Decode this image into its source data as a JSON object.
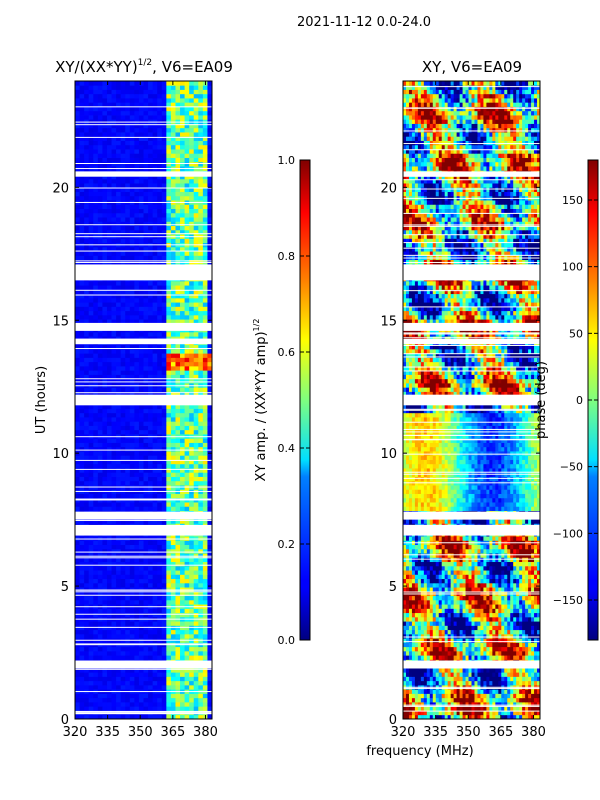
{
  "suptitle": "2021-11-12 0.0-24.0",
  "xlabel": "frequency (MHz)",
  "chart_data": [
    {
      "type": "heatmap",
      "title": "XY/(XX*YY)",
      "title_exponent": "1/2",
      "title_suffix": ", V6=EA09",
      "xlabel": "",
      "ylabel": "UT (hours)",
      "x_ticks": [
        "320",
        "335",
        "350",
        "365",
        "380"
      ],
      "x_tick_values": [
        320,
        335,
        350,
        365,
        380
      ],
      "y_ticks": [
        "0",
        "5",
        "10",
        "15",
        "20"
      ],
      "y_tick_values": [
        0,
        5,
        10,
        15,
        20
      ],
      "xlim": [
        320,
        383
      ],
      "ylim": [
        0,
        24
      ],
      "colorbar": {
        "label": "XY amp. / (XX*YY amp)",
        "label_exponent": "1/2",
        "range": [
          0.0,
          1.0
        ],
        "ticks": [
          "0.0",
          "0.2",
          "0.4",
          "0.6",
          "0.8",
          "1.0"
        ],
        "tick_values": [
          0.0,
          0.2,
          0.4,
          0.6,
          0.8,
          1.0
        ]
      },
      "bright_band_mhz": [
        361,
        381
      ],
      "gap_bands_hours": [
        [
          1.9,
          2.2
        ],
        [
          6.9,
          7.3
        ],
        [
          7.5,
          7.8
        ],
        [
          11.8,
          12.2
        ],
        [
          14.1,
          14.3
        ],
        [
          14.6,
          14.9
        ],
        [
          16.5,
          17.1
        ],
        [
          20.4,
          20.6
        ]
      ]
    },
    {
      "type": "heatmap",
      "title": "XY, V6=EA09",
      "xlabel": "frequency (MHz)",
      "ylabel": "",
      "x_ticks": [
        "320",
        "335",
        "350",
        "365",
        "380"
      ],
      "x_tick_values": [
        320,
        335,
        350,
        365,
        380
      ],
      "y_ticks": [
        "0",
        "5",
        "10",
        "15",
        "20"
      ],
      "y_tick_values": [
        0,
        5,
        10,
        15,
        20
      ],
      "xlim": [
        320,
        383
      ],
      "ylim": [
        0,
        24
      ],
      "colorbar": {
        "label": "phase (deg)",
        "range": [
          -180,
          180
        ],
        "ticks": [
          "−150",
          "−100",
          "−50",
          "0",
          "50",
          "100",
          "150"
        ],
        "tick_values": [
          -150,
          -100,
          -50,
          0,
          50,
          100,
          150
        ]
      },
      "gap_bands_hours": [
        [
          1.9,
          2.2
        ],
        [
          6.9,
          7.3
        ],
        [
          7.5,
          7.8
        ],
        [
          11.8,
          12.2
        ],
        [
          14.1,
          14.3
        ],
        [
          14.6,
          14.9
        ],
        [
          16.5,
          17.1
        ],
        [
          20.4,
          20.6
        ]
      ]
    }
  ]
}
